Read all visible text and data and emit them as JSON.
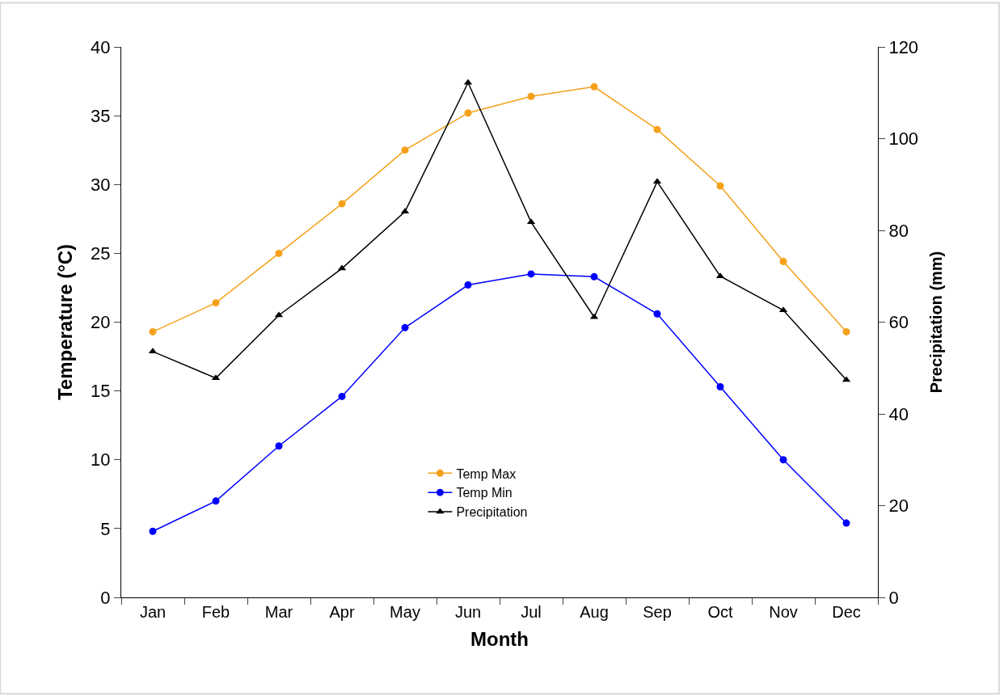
{
  "chart_data": {
    "type": "line",
    "xlabel": "Month",
    "ylabel": "Temperature (°C)",
    "y2label": "Precipitation (mm)",
    "categories": [
      "Jan",
      "Feb",
      "Mar",
      "Apr",
      "May",
      "Jun",
      "Jul",
      "Aug",
      "Sep",
      "Oct",
      "Nov",
      "Dec"
    ],
    "series": [
      {
        "name": "Temp Max",
        "color": "#f5a01a",
        "marker": "circle",
        "values": [
          19.3,
          21.4,
          25.0,
          28.6,
          32.5,
          35.2,
          36.4,
          37.1,
          34.0,
          29.9,
          24.4,
          19.3
        ]
      },
      {
        "name": "Temp Min",
        "color": "#0000ff",
        "marker": "circle",
        "values": [
          4.8,
          7.0,
          11.0,
          14.6,
          19.6,
          22.7,
          23.5,
          23.3,
          20.6,
          15.3,
          10.0,
          5.4
        ]
      },
      {
        "name": "Precipitation",
        "color": "#000000",
        "marker": "triangle",
        "axis": "y2",
        "values": [
          53.6,
          47.8,
          61.5,
          71.7,
          84.1,
          112.2,
          81.8,
          61.1,
          90.6,
          70.0,
          62.6,
          47.4
        ]
      }
    ],
    "ylim": [
      0,
      40
    ],
    "yticks": [
      0,
      5,
      10,
      15,
      20,
      25,
      30,
      35,
      40
    ],
    "y2lim": [
      0,
      120
    ],
    "y2ticks": [
      0,
      20,
      40,
      60,
      80,
      100,
      120
    ],
    "legend": "bottom",
    "line_style": "solid"
  }
}
